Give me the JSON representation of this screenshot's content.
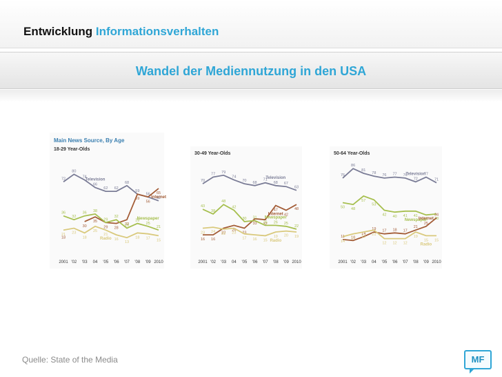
{
  "header": {
    "title_main": "Entwicklung",
    "title_accent": "Informationsverhalten"
  },
  "subtitle": "Wandel der Mediennutzung in den USA",
  "source": "Quelle: State of the Media",
  "badge": "MF",
  "colors": {
    "accent": "#2fa6d6",
    "television": "#7a7c96",
    "internet": "#a35c36",
    "newspaper": "#a6bf4e",
    "radio": "#d9c97c"
  },
  "chart_data": [
    {
      "type": "line",
      "title": "Main News Source, By Age",
      "subtitle": "18-29 Year-Olds",
      "x": [
        "2001",
        "'02",
        "'03",
        "04",
        "'05",
        "'06",
        "'07",
        "'08",
        "'09",
        "2010"
      ],
      "ylim": [
        0,
        100
      ],
      "series": [
        {
          "name": "Television",
          "color": "#7a7c96",
          "values": [
            72,
            80,
            74,
            66,
            62,
            62,
            68,
            59,
            56,
            52
          ],
          "label_index": 3
        },
        {
          "name": "Internet",
          "color": "#a35c36",
          "values": [
            18,
            null,
            30,
            35,
            29,
            28,
            32,
            59,
            56,
            65
          ],
          "label_index": 9
        },
        {
          "name": "Newspaper",
          "color": "#a6bf4e",
          "values": [
            36,
            32,
            36,
            38,
            29,
            32,
            23,
            28,
            25,
            21
          ],
          "label_index": 8
        },
        {
          "name": "Radio",
          "color": "#d9c97c",
          "values": [
            21,
            23,
            18,
            25,
            21,
            16,
            13,
            18,
            17,
            15
          ],
          "label_index": 4
        }
      ]
    },
    {
      "type": "line",
      "title": "",
      "subtitle": "30-49 Year-Olds",
      "x": [
        "2001",
        "'02",
        "'03",
        "04",
        "'05",
        "'06",
        "'07",
        "'08",
        "'09",
        "2010"
      ],
      "ylim": [
        0,
        100
      ],
      "series": [
        {
          "name": "Television",
          "color": "#7a7c96",
          "values": [
            70,
            77,
            79,
            74,
            70,
            68,
            71,
            68,
            67,
            63
          ],
          "label_index": 7
        },
        {
          "name": "Internet",
          "color": "#a35c36",
          "values": [
            16,
            16,
            23,
            26,
            23,
            33,
            32,
            47,
            42,
            48
          ],
          "label_index": 7
        },
        {
          "name": "Newspaper",
          "color": "#a6bf4e",
          "values": [
            43,
            38,
            48,
            42,
            30,
            31,
            26,
            26,
            25,
            22
          ],
          "label_index": 7
        },
        {
          "name": "Radio",
          "color": "#d9c97c",
          "values": [
            23,
            24,
            22,
            23,
            17,
            16,
            15,
            19,
            20,
            19
          ],
          "label_index": 7
        }
      ]
    },
    {
      "type": "line",
      "title": "",
      "subtitle": "50-64 Year-Olds",
      "x": [
        "2001",
        "'02",
        "'03",
        "04",
        "'05",
        "'06",
        "'07",
        "'08",
        "'09",
        "2010"
      ],
      "ylim": [
        0,
        100
      ],
      "series": [
        {
          "name": "Television",
          "color": "#7a7c96",
          "values": [
            76,
            86,
            81,
            78,
            76,
            77,
            76,
            72,
            77,
            71
          ],
          "label_index": 7
        },
        {
          "name": "Newspaper",
          "color": "#a6bf4e",
          "values": [
            50,
            48,
            57,
            53,
            42,
            40,
            41,
            41,
            37,
            38
          ],
          "label_index": 7
        },
        {
          "name": "Internet",
          "color": "#a35c36",
          "values": [
            11,
            10,
            14,
            19,
            17,
            18,
            17,
            21,
            25,
            34
          ],
          "label_index": 8
        },
        {
          "name": "Radio",
          "color": "#d9c97c",
          "values": [
            14,
            17,
            19,
            21,
            12,
            12,
            12,
            19,
            15,
            15
          ],
          "label_index": 8
        }
      ]
    }
  ]
}
